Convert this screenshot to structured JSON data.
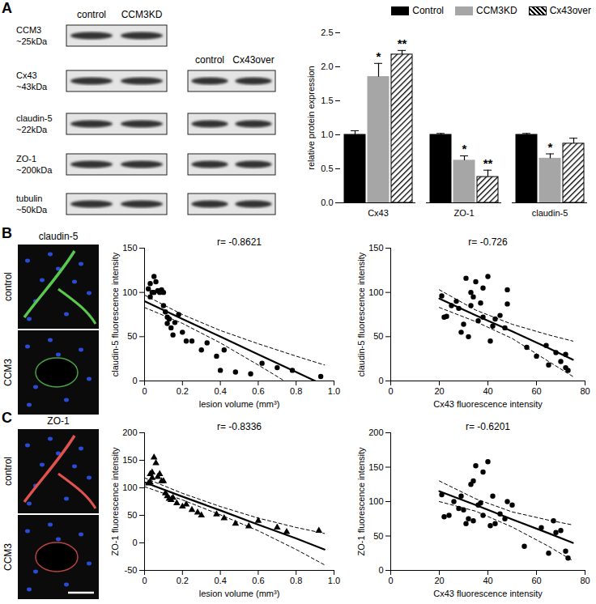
{
  "panel_labels": [
    "A",
    "B",
    "C"
  ],
  "blots": {
    "rows": [
      {
        "name": "CCM3",
        "size": "~25kDa"
      },
      {
        "name": "Cx43",
        "size": "~43kDa"
      },
      {
        "name": "claudin-5",
        "size": "~22kDa"
      },
      {
        "name": "ZO-1",
        "size": "~200kDa"
      },
      {
        "name": "tubulin",
        "size": "~50kDa"
      }
    ],
    "groups": [
      {
        "lanes": [
          "control",
          "CCM3KD"
        ],
        "rows": [
          "CCM3",
          "Cx43",
          "claudin-5",
          "ZO-1",
          "tubulin"
        ]
      },
      {
        "lanes": [
          "control",
          "Cx43over"
        ],
        "rows": [
          "Cx43",
          "claudin-5",
          "ZO-1",
          "tubulin"
        ]
      }
    ]
  },
  "images": [
    {
      "title": "claudin-5",
      "rows": [
        "control",
        "CCM3"
      ],
      "color": "#58c84f"
    },
    {
      "title": "ZO-1",
      "rows": [
        "control",
        "CCM3"
      ],
      "color": "#e0524e"
    }
  ],
  "chart_data": [
    {
      "type": "bar",
      "y_label": "relative protein expression",
      "categories": [
        "Cx43",
        "ZO-1",
        "claudin-5"
      ],
      "legend": "top",
      "ylim": [
        0,
        2.5
      ],
      "yticks": [
        {
          "value": 0,
          "label": "0.0"
        },
        {
          "value": 0.5,
          "label": "0.5"
        },
        {
          "value": 1,
          "label": "1.0"
        },
        {
          "value": 1.5,
          "label": "1.5"
        },
        {
          "value": 2,
          "label": "2.0"
        },
        {
          "value": 2.5,
          "label": "2.5"
        }
      ],
      "series": [
        {
          "name": "Control",
          "color": "#000000",
          "values": [
            1.0,
            1.0,
            1.0
          ],
          "errors": [
            0.06,
            0.02,
            0.02
          ]
        },
        {
          "name": "CCM3KD",
          "color": "#a6a6a6",
          "values": [
            1.85,
            0.62,
            0.65
          ],
          "errors": [
            0.2,
            0.07,
            0.07
          ],
          "significance": [
            "*",
            "*",
            "*"
          ]
        },
        {
          "name": "Cx43over",
          "color": "#000000",
          "marker": "hatch",
          "values": [
            2.18,
            0.38,
            0.87
          ],
          "errors": [
            0.06,
            0.1,
            0.08
          ],
          "significance": [
            "**",
            "**",
            null
          ]
        }
      ]
    },
    {
      "type": "scatter",
      "annotation": "r= -0.8621",
      "x_label": "lesion volume (mm³)",
      "y_label": "claudin-5 fluorescence intensity",
      "xlim": [
        0,
        1
      ],
      "xticks": [
        0,
        0.2,
        0.4,
        0.6,
        0.8,
        {
          "value": 1,
          "label": "1.0"
        }
      ],
      "ylim": [
        0,
        150
      ],
      "yticks": [
        0,
        50,
        100,
        150
      ],
      "marker": "circle",
      "x": [
        0.02,
        0.03,
        0.03,
        0.04,
        0.05,
        0.05,
        0.06,
        0.07,
        0.08,
        0.09,
        0.1,
        0.1,
        0.11,
        0.12,
        0.12,
        0.13,
        0.14,
        0.15,
        0.16,
        0.18,
        0.2,
        0.22,
        0.25,
        0.3,
        0.33,
        0.38,
        0.4,
        0.42,
        0.48,
        0.56,
        0.62,
        0.7,
        0.78,
        0.93
      ],
      "values": [
        104,
        95,
        110,
        100,
        100,
        118,
        112,
        102,
        100,
        103,
        100,
        85,
        78,
        72,
        65,
        70,
        60,
        52,
        66,
        75,
        55,
        45,
        45,
        35,
        43,
        28,
        12,
        35,
        10,
        8,
        20,
        15,
        12,
        5
      ],
      "fit": {
        "x": [
          0,
          0.2,
          0.4,
          0.6,
          0.8,
          0.95
        ],
        "y": [
          90,
          70,
          50,
          30,
          10,
          -5
        ]
      },
      "ci": {
        "line_style": "dashed",
        "x": [
          0,
          0.2,
          0.4,
          0.6,
          0.8,
          0.95
        ],
        "upper": [
          97,
          75,
          57,
          42,
          28,
          18
        ],
        "lower": [
          83,
          65,
          43,
          18,
          -8,
          -28
        ]
      }
    },
    {
      "type": "scatter",
      "annotation": "r= -0.726",
      "x_label": "Cx43 fluorescence intensity",
      "y_label": "claudin-5 fluorescence intensity",
      "xlim": [
        0,
        80
      ],
      "xticks": [
        0,
        20,
        40,
        60,
        80
      ],
      "ylim": [
        0,
        150
      ],
      "yticks": [
        0,
        50,
        100,
        150
      ],
      "marker": "circle",
      "x": [
        21,
        22,
        23,
        25,
        27,
        28,
        29,
        30,
        31,
        32,
        33,
        33,
        34,
        35,
        36,
        37,
        38,
        38,
        40,
        41,
        42,
        43,
        45,
        47,
        48,
        48,
        56,
        60,
        64,
        65,
        68,
        70,
        72,
        72,
        73
      ],
      "values": [
        96,
        72,
        73,
        85,
        90,
        82,
        55,
        64,
        116,
        50,
        100,
        85,
        95,
        112,
        68,
        88,
        72,
        105,
        118,
        45,
        62,
        70,
        74,
        60,
        87,
        103,
        38,
        28,
        40,
        18,
        32,
        22,
        15,
        30,
        12
      ],
      "fit": {
        "x": [
          20,
          35,
          50,
          65,
          75
        ],
        "y": [
          93,
          74,
          56,
          37,
          24
        ]
      },
      "ci": {
        "line_style": "dashed",
        "x": [
          20,
          35,
          50,
          65,
          75
        ],
        "upper": [
          103,
          80,
          64,
          52,
          45
        ],
        "lower": [
          83,
          67,
          48,
          22,
          5
        ]
      }
    },
    {
      "type": "scatter",
      "annotation": "r= -0.8336",
      "x_label": "lesion volume (mm³)",
      "y_label": "ZO-1 fluorescence intensity",
      "xlim": [
        0,
        1
      ],
      "xticks": [
        0,
        0.2,
        0.4,
        0.6,
        0.8,
        {
          "value": 1,
          "label": "1.0"
        }
      ],
      "ylim": [
        -50,
        200
      ],
      "yticks": [
        -50,
        0,
        50,
        100,
        150,
        200
      ],
      "marker": "triangle",
      "x": [
        0.02,
        0.03,
        0.03,
        0.04,
        0.04,
        0.05,
        0.06,
        0.07,
        0.08,
        0.09,
        0.1,
        0.11,
        0.12,
        0.13,
        0.14,
        0.15,
        0.17,
        0.2,
        0.22,
        0.25,
        0.28,
        0.3,
        0.38,
        0.42,
        0.48,
        0.55,
        0.6,
        0.7,
        0.75,
        0.92
      ],
      "values": [
        108,
        125,
        110,
        118,
        128,
        155,
        145,
        120,
        125,
        112,
        112,
        90,
        85,
        80,
        78,
        82,
        72,
        66,
        70,
        60,
        55,
        50,
        52,
        45,
        35,
        30,
        40,
        28,
        20,
        22
      ],
      "fit": {
        "x": [
          0,
          0.2,
          0.4,
          0.6,
          0.8,
          0.95
        ],
        "y": [
          110,
          84,
          59,
          33,
          8,
          -12
        ]
      },
      "ci": {
        "line_style": "dashed",
        "x": [
          0,
          0.2,
          0.4,
          0.6,
          0.8,
          0.95
        ],
        "upper": [
          118,
          90,
          66,
          45,
          28,
          17
        ],
        "lower": [
          102,
          78,
          51,
          22,
          -12,
          -40
        ]
      }
    },
    {
      "type": "scatter",
      "annotation": "r= -0.6201",
      "x_label": "Cx43 fluorescence intensity",
      "y_label": "ZO-1 fluorescence intensity",
      "xlim": [
        0,
        80
      ],
      "xticks": [
        0,
        20,
        40,
        60,
        80
      ],
      "ylim": [
        0,
        200
      ],
      "yticks": [
        0,
        50,
        100,
        150,
        200
      ],
      "marker": "circle",
      "x": [
        21,
        22,
        24,
        26,
        28,
        29,
        30,
        31,
        32,
        33,
        34,
        34,
        35,
        36,
        37,
        38,
        38,
        40,
        41,
        42,
        43,
        45,
        47,
        48,
        50,
        55,
        62,
        65,
        67,
        68,
        70,
        72,
        73
      ],
      "values": [
        110,
        78,
        80,
        100,
        90,
        108,
        88,
        68,
        75,
        125,
        130,
        72,
        152,
        95,
        98,
        80,
        143,
        158,
        65,
        108,
        68,
        82,
        75,
        100,
        95,
        35,
        62,
        25,
        72,
        55,
        58,
        28,
        18
      ],
      "fit": {
        "x": [
          20,
          35,
          50,
          65,
          75
        ],
        "y": [
          115,
          95,
          74,
          54,
          40
        ]
      },
      "ci": {
        "line_style": "dashed",
        "x": [
          20,
          35,
          50,
          65,
          75
        ],
        "upper": [
          130,
          104,
          85,
          73,
          66
        ],
        "lower": [
          100,
          86,
          63,
          35,
          14
        ]
      }
    }
  ]
}
